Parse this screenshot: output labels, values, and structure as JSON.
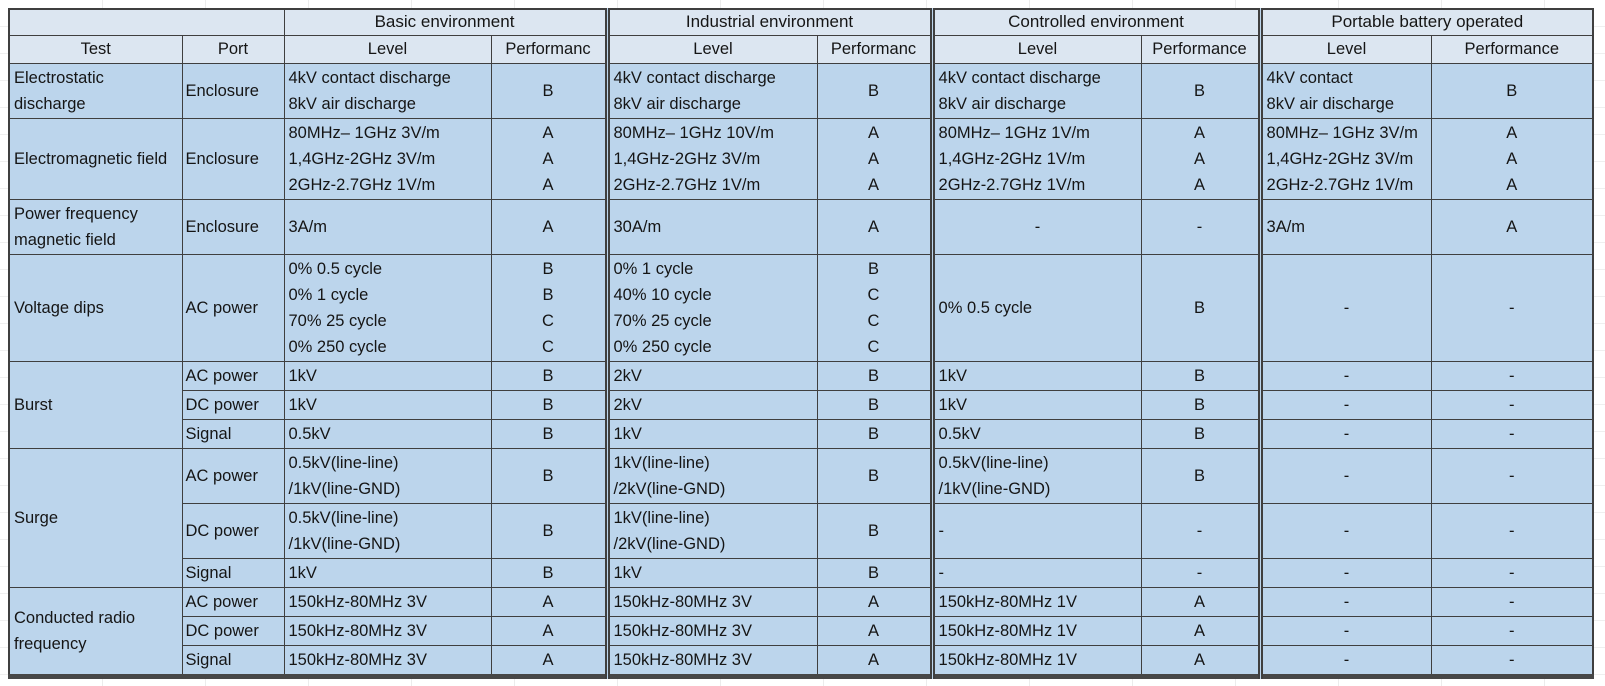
{
  "header": {
    "corner": "",
    "test": "Test",
    "port": "Port",
    "groups": [
      {
        "label": "Basic environment",
        "level": "Level",
        "perf": "Performanc"
      },
      {
        "label": "Industrial environment",
        "level": "Level",
        "perf": "Performanc"
      },
      {
        "label": "Controlled environment",
        "level": "Level",
        "perf": "Performance"
      },
      {
        "label": "Portable battery operated",
        "level": "Level",
        "perf": "Performance"
      }
    ]
  },
  "colors": {
    "header_fill": "#dce6f1",
    "body_fill": "#bcd5ec",
    "border": "#3f3f3f"
  },
  "sections": [
    {
      "test": "Electrostatic discharge",
      "subrows": [
        {
          "port": "Enclosure",
          "cells": [
            {
              "level": [
                "4kV contact discharge",
                "8kV air discharge"
              ],
              "perf": [
                "B"
              ]
            },
            {
              "level": [
                "4kV contact discharge",
                "8kV air discharge"
              ],
              "perf": [
                "B"
              ]
            },
            {
              "level": [
                "4kV contact discharge",
                "8kV air discharge"
              ],
              "perf": [
                "B"
              ]
            },
            {
              "level": [
                "4kV contact",
                "8kV air discharge"
              ],
              "perf": [
                "B"
              ]
            }
          ]
        }
      ]
    },
    {
      "test": "Electromagnetic field",
      "subrows": [
        {
          "port": "Enclosure",
          "cells": [
            {
              "level": [
                "80MHz– 1GHz 3V/m",
                "1,4GHz-2GHz 3V/m",
                "2GHz-2.7GHz 1V/m"
              ],
              "perf": [
                "A",
                "A",
                "A"
              ]
            },
            {
              "level": [
                "80MHz– 1GHz 10V/m",
                "1,4GHz-2GHz 3V/m",
                "2GHz-2.7GHz 1V/m"
              ],
              "perf": [
                "A",
                "A",
                "A"
              ]
            },
            {
              "level": [
                "80MHz– 1GHz 1V/m",
                "1,4GHz-2GHz 1V/m",
                "2GHz-2.7GHz 1V/m"
              ],
              "perf": [
                "A",
                "A",
                "A"
              ]
            },
            {
              "level": [
                "80MHz– 1GHz 3V/m",
                "1,4GHz-2GHz 3V/m",
                "2GHz-2.7GHz 1V/m"
              ],
              "perf": [
                "A",
                "A",
                "A"
              ]
            }
          ]
        }
      ]
    },
    {
      "test": "Power frequency magnetic field",
      "subrows": [
        {
          "port": "Enclosure",
          "cells": [
            {
              "level": [
                "3A/m"
              ],
              "perf": [
                "A"
              ]
            },
            {
              "level": [
                "30A/m"
              ],
              "perf": [
                "A"
              ]
            },
            {
              "level": [
                "-"
              ],
              "level_align": "center",
              "perf": [
                "-"
              ]
            },
            {
              "level": [
                "3A/m"
              ],
              "perf": [
                "A"
              ]
            }
          ]
        }
      ]
    },
    {
      "test": "Voltage dips",
      "subrows": [
        {
          "port": "AC power",
          "cells": [
            {
              "level": [
                "0% 0.5 cycle",
                "0% 1 cycle",
                "70% 25 cycle",
                "0% 250 cycle"
              ],
              "perf": [
                "B",
                "B",
                "C",
                "C"
              ]
            },
            {
              "level": [
                "0% 1 cycle",
                "40% 10 cycle",
                "70% 25 cycle",
                "0% 250 cycle"
              ],
              "perf": [
                "B",
                "C",
                "C",
                "C"
              ]
            },
            {
              "level": [
                "0% 0.5 cycle"
              ],
              "perf": [
                "B"
              ]
            },
            {
              "level": [
                "-"
              ],
              "level_align": "center",
              "perf": [
                "-"
              ]
            }
          ]
        }
      ]
    },
    {
      "test": "Burst",
      "subrows": [
        {
          "port": "AC power",
          "cells": [
            {
              "level": [
                "1kV"
              ],
              "perf": [
                "B"
              ]
            },
            {
              "level": [
                "2kV"
              ],
              "perf": [
                "B"
              ]
            },
            {
              "level": [
                "1kV"
              ],
              "perf": [
                "B"
              ]
            },
            {
              "level": [
                "-"
              ],
              "level_align": "center",
              "perf": [
                "-"
              ]
            }
          ]
        },
        {
          "port": "DC power",
          "cells": [
            {
              "level": [
                "1kV"
              ],
              "perf": [
                "B"
              ]
            },
            {
              "level": [
                "2kV"
              ],
              "perf": [
                "B"
              ]
            },
            {
              "level": [
                "1kV"
              ],
              "perf": [
                "B"
              ]
            },
            {
              "level": [
                "-"
              ],
              "level_align": "center",
              "perf": [
                "-"
              ]
            }
          ]
        },
        {
          "port": "Signal",
          "cells": [
            {
              "level": [
                "0.5kV"
              ],
              "perf": [
                "B"
              ]
            },
            {
              "level": [
                "1kV"
              ],
              "perf": [
                "B"
              ]
            },
            {
              "level": [
                "0.5kV"
              ],
              "perf": [
                "B"
              ]
            },
            {
              "level": [
                "-"
              ],
              "level_align": "center",
              "perf": [
                "-"
              ]
            }
          ]
        }
      ]
    },
    {
      "test": "Surge",
      "subrows": [
        {
          "port": "AC power",
          "cells": [
            {
              "level": [
                "0.5kV(line-line)",
                "/1kV(line-GND)"
              ],
              "perf": [
                "B"
              ]
            },
            {
              "level": [
                "1kV(line-line)",
                "/2kV(line-GND)"
              ],
              "perf": [
                "B"
              ]
            },
            {
              "level": [
                "0.5kV(line-line)",
                "/1kV(line-GND)"
              ],
              "perf": [
                "B"
              ]
            },
            {
              "level": [
                "-"
              ],
              "level_align": "center",
              "perf": [
                "-"
              ]
            }
          ]
        },
        {
          "port": "DC power",
          "cells": [
            {
              "level": [
                "0.5kV(line-line)",
                "/1kV(line-GND)"
              ],
              "perf": [
                "B"
              ]
            },
            {
              "level": [
                "1kV(line-line)",
                "/2kV(line-GND)"
              ],
              "perf": [
                "B"
              ]
            },
            {
              "level": [
                "-"
              ],
              "perf": [
                "-"
              ]
            },
            {
              "level": [
                "-"
              ],
              "level_align": "center",
              "perf": [
                "-"
              ]
            }
          ]
        },
        {
          "port": "Signal",
          "cells": [
            {
              "level": [
                "1kV"
              ],
              "perf": [
                "B"
              ]
            },
            {
              "level": [
                "1kV"
              ],
              "perf": [
                "B"
              ]
            },
            {
              "level": [
                "-"
              ],
              "perf": [
                "-"
              ]
            },
            {
              "level": [
                "-"
              ],
              "level_align": "center",
              "perf": [
                "-"
              ]
            }
          ]
        }
      ]
    },
    {
      "test": "Conducted radio frequency",
      "subrows": [
        {
          "port": "AC power",
          "cells": [
            {
              "level": [
                "150kHz-80MHz 3V"
              ],
              "perf": [
                "A"
              ]
            },
            {
              "level": [
                "150kHz-80MHz 3V"
              ],
              "perf": [
                "A"
              ]
            },
            {
              "level": [
                "150kHz-80MHz 1V"
              ],
              "perf": [
                "A"
              ]
            },
            {
              "level": [
                "-"
              ],
              "level_align": "center",
              "perf": [
                "-"
              ]
            }
          ]
        },
        {
          "port": "DC power",
          "cells": [
            {
              "level": [
                "150kHz-80MHz 3V"
              ],
              "perf": [
                "A"
              ]
            },
            {
              "level": [
                "150kHz-80MHz 3V"
              ],
              "perf": [
                "A"
              ]
            },
            {
              "level": [
                "150kHz-80MHz 1V"
              ],
              "perf": [
                "A"
              ]
            },
            {
              "level": [
                "-"
              ],
              "level_align": "center",
              "perf": [
                "-"
              ]
            }
          ]
        },
        {
          "port": "Signal",
          "cells": [
            {
              "level": [
                "150kHz-80MHz 3V"
              ],
              "perf": [
                "A"
              ]
            },
            {
              "level": [
                "150kHz-80MHz 3V"
              ],
              "perf": [
                "A"
              ]
            },
            {
              "level": [
                "150kHz-80MHz 1V"
              ],
              "perf": [
                "A"
              ]
            },
            {
              "level": [
                "-"
              ],
              "level_align": "center",
              "perf": [
                "-"
              ]
            }
          ]
        }
      ]
    }
  ]
}
